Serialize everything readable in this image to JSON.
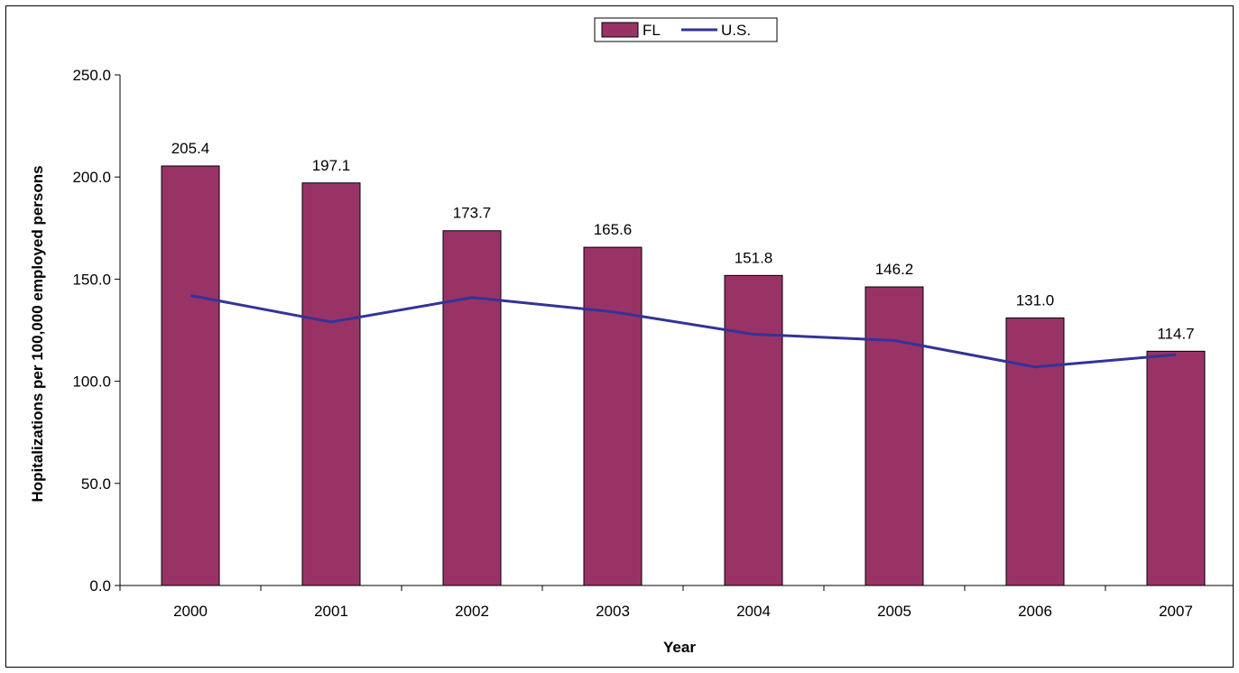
{
  "chart_data": {
    "type": "bar",
    "categories": [
      "2000",
      "2001",
      "2002",
      "2003",
      "2004",
      "2005",
      "2006",
      "2007"
    ],
    "series": [
      {
        "name": "FL",
        "type": "bar",
        "color": "#993366",
        "values": [
          205.4,
          197.1,
          173.7,
          165.6,
          151.8,
          146.2,
          131.0,
          114.7
        ],
        "labels": [
          "205.4",
          "197.1",
          "173.7",
          "165.6",
          "151.8",
          "146.2",
          "131.0",
          "114.7"
        ]
      },
      {
        "name": "U.S.",
        "type": "line",
        "color": "#333399",
        "values": [
          142,
          129,
          141,
          134,
          123,
          120,
          107,
          113
        ]
      }
    ],
    "title": "",
    "xlabel": "Year",
    "ylabel": "Hopitalizations per 100,000 employed persons",
    "ylim": [
      0,
      250
    ],
    "yticks": [
      "0.0",
      "50.0",
      "100.0",
      "150.0",
      "200.0",
      "250.0"
    ],
    "grid": false,
    "legend": "top-center"
  }
}
